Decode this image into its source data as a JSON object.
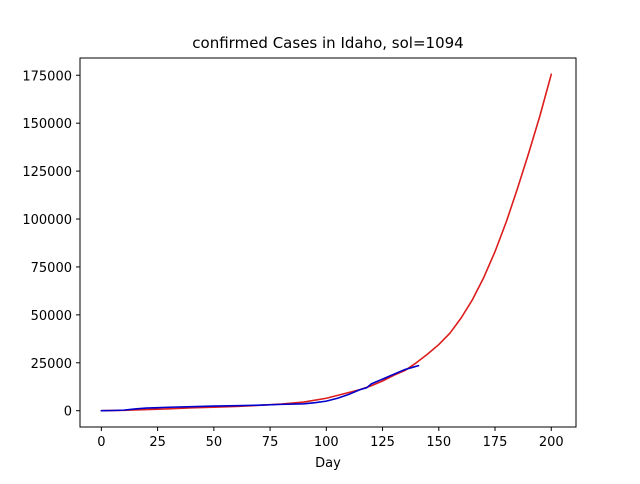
{
  "chart_data": {
    "type": "line",
    "title": "confirmed Cases in Idaho, sol=1094",
    "xlabel": "Day",
    "ylabel": "",
    "xlim": [
      -9.5,
      211
    ],
    "ylim": [
      -8500,
      184000
    ],
    "xticks": [
      0,
      25,
      50,
      75,
      100,
      125,
      150,
      175,
      200
    ],
    "yticks": [
      0,
      25000,
      50000,
      75000,
      100000,
      125000,
      150000,
      175000
    ],
    "grid": false,
    "series": [
      {
        "color": "#dd1c1c",
        "x": [
          0,
          10,
          20,
          30,
          40,
          50,
          60,
          70,
          80,
          90,
          100,
          110,
          115,
          120,
          125,
          130,
          135,
          140,
          145,
          150,
          155,
          160,
          165,
          170,
          175,
          180,
          185,
          190,
          195,
          200
        ],
        "y": [
          0,
          200,
          600,
          1000,
          1500,
          1800,
          2200,
          2800,
          3500,
          4500,
          6500,
          9500,
          11000,
          13000,
          15500,
          18500,
          21000,
          25000,
          29500,
          34500,
          40500,
          48500,
          58000,
          69500,
          83000,
          98500,
          116000,
          134500,
          154000,
          175500
        ]
      },
      {
        "color": "#0000cc",
        "x": [
          0,
          5,
          10,
          15,
          20,
          25,
          30,
          40,
          50,
          60,
          70,
          80,
          90,
          95,
          100,
          105,
          110,
          115,
          118,
          120,
          125,
          130,
          135,
          138,
          141
        ],
        "y": [
          0,
          100,
          300,
          900,
          1400,
          1600,
          1800,
          2100,
          2400,
          2600,
          2900,
          3300,
          3600,
          4200,
          5000,
          6500,
          8500,
          11000,
          12000,
          14000,
          16500,
          19000,
          21500,
          22500,
          23500
        ]
      }
    ]
  }
}
